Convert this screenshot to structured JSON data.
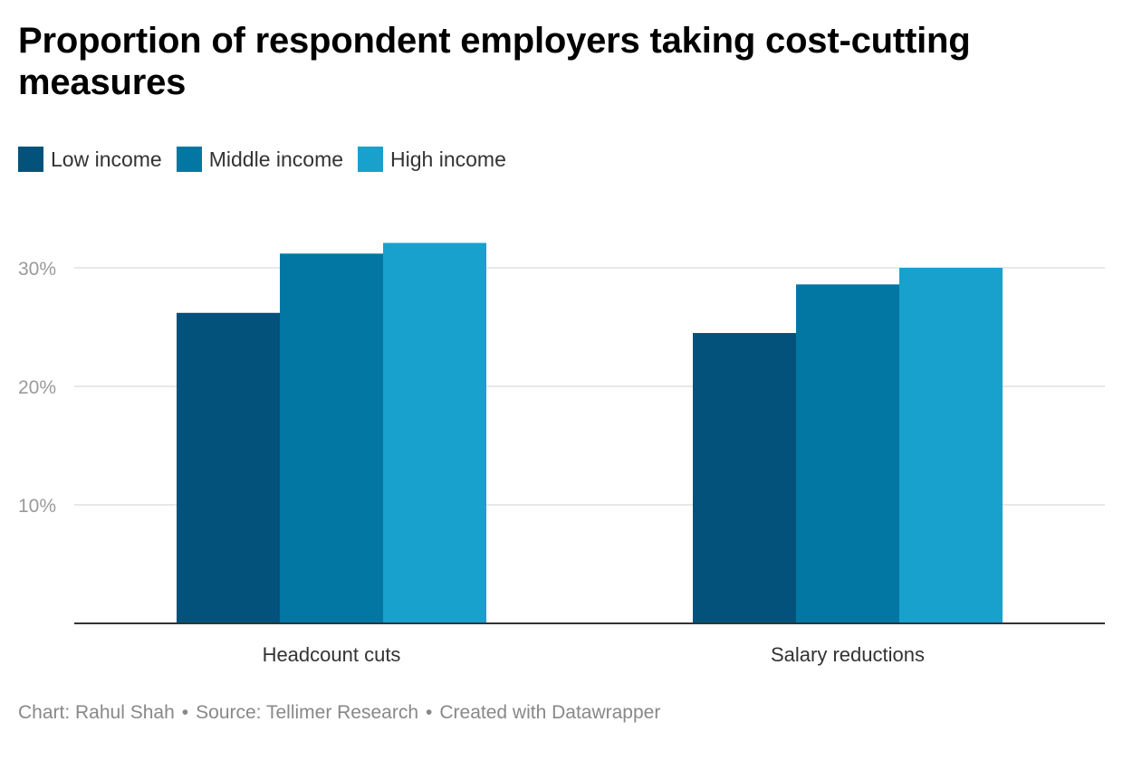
{
  "chart_data": {
    "type": "bar",
    "title": "Proportion of respondent employers taking cost-cutting measures",
    "categories": [
      "Headcount cuts",
      "Salary reductions"
    ],
    "series": [
      {
        "name": "Low income",
        "color": "#03527b",
        "values": [
          26.2,
          24.5
        ]
      },
      {
        "name": "Middle income",
        "color": "#0277a4",
        "values": [
          31.2,
          28.6
        ]
      },
      {
        "name": "High income",
        "color": "#18a1cd",
        "values": [
          32.1,
          30.0
        ]
      }
    ],
    "yticks": [
      "10%",
      "20%",
      "30%"
    ],
    "ytick_values": [
      10,
      20,
      30
    ],
    "ylim": [
      0,
      35
    ],
    "grid": true,
    "legend": "top-left",
    "xlabel": "",
    "ylabel": ""
  },
  "footer": {
    "chart_credit": "Chart: Rahul Shah",
    "source": "Source: Tellimer Research",
    "created": "Created with Datawrapper",
    "separator": "•"
  }
}
